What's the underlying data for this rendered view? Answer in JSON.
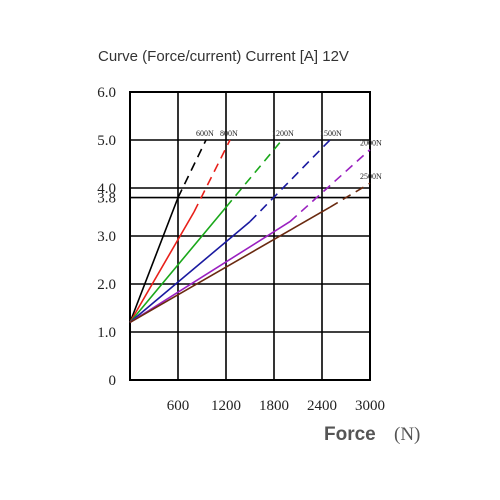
{
  "chart_data": {
    "type": "line",
    "title": "Curve (Force/current) Current [A] 12V",
    "xlabel": "Force",
    "xunit": "(N)",
    "ylabel": "",
    "xlim": [
      0,
      3000
    ],
    "ylim": [
      0,
      6.0
    ],
    "xticks": [
      {
        "value": 600,
        "label": "600"
      },
      {
        "value": 1200,
        "label": "1200"
      },
      {
        "value": 1800,
        "label": "1800"
      },
      {
        "value": 2400,
        "label": "2400"
      },
      {
        "value": 3000,
        "label": "3000"
      }
    ],
    "yticks": [
      {
        "value": 0,
        "label": "0"
      },
      {
        "value": 1.0,
        "label": "1.0"
      },
      {
        "value": 2.0,
        "label": "2.0"
      },
      {
        "value": 3.0,
        "label": "3.0"
      },
      {
        "value": 3.8,
        "label": "3.8"
      },
      {
        "value": 4.0,
        "label": "4.0"
      },
      {
        "value": 5.0,
        "label": "5.0"
      },
      {
        "value": 6.0,
        "label": "6.0"
      }
    ],
    "grid": true,
    "series": [
      {
        "name": "600N",
        "color": "#000000",
        "solid": [
          [
            0,
            1.2
          ],
          [
            600,
            3.8
          ]
        ],
        "dashed": [
          [
            600,
            3.8
          ],
          [
            950,
            5.0
          ]
        ]
      },
      {
        "name": "800N",
        "color": "#e8201a",
        "solid": [
          [
            0,
            1.2
          ],
          [
            800,
            3.5
          ]
        ],
        "dashed": [
          [
            800,
            3.5
          ],
          [
            1250,
            5.0
          ]
        ]
      },
      {
        "name": "1200N",
        "color": "#1aa81a",
        "solid": [
          [
            0,
            1.2
          ],
          [
            1200,
            3.6
          ]
        ],
        "dashed": [
          [
            1200,
            3.6
          ],
          [
            1900,
            5.0
          ]
        ]
      },
      {
        "name": "1500N",
        "color": "#1a1aa0",
        "solid": [
          [
            0,
            1.2
          ],
          [
            1500,
            3.3
          ]
        ],
        "dashed": [
          [
            1500,
            3.3
          ],
          [
            2500,
            5.0
          ]
        ]
      },
      {
        "name": "2000N",
        "color": "#9a20c0",
        "solid": [
          [
            0,
            1.2
          ],
          [
            2000,
            3.3
          ]
        ],
        "dashed": [
          [
            2000,
            3.3
          ],
          [
            3000,
            4.8
          ]
        ]
      },
      {
        "name": "2500N",
        "color": "#6a2a10",
        "solid": [
          [
            0,
            1.2
          ],
          [
            2500,
            3.6
          ]
        ],
        "dashed": [
          [
            2500,
            3.6
          ],
          [
            3000,
            4.1
          ]
        ]
      }
    ]
  }
}
